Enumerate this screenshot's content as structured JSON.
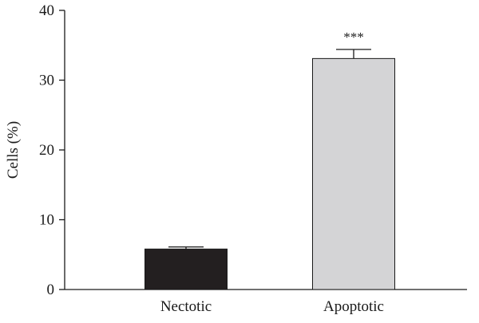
{
  "chart_data": {
    "type": "bar",
    "title": "",
    "xlabel": "",
    "ylabel": "Cells (%)",
    "ylim": [
      0,
      40
    ],
    "yticks": [
      0,
      10,
      20,
      30,
      40
    ],
    "categories": [
      "Nectotic",
      "Apoptotic"
    ],
    "values": [
      5.8,
      33.1
    ],
    "errors": [
      0.3,
      1.3
    ],
    "bar_colors": [
      "#231f20",
      "#d4d4d6"
    ],
    "annotations": [
      "",
      "***"
    ],
    "grid": false,
    "legend": "none"
  }
}
